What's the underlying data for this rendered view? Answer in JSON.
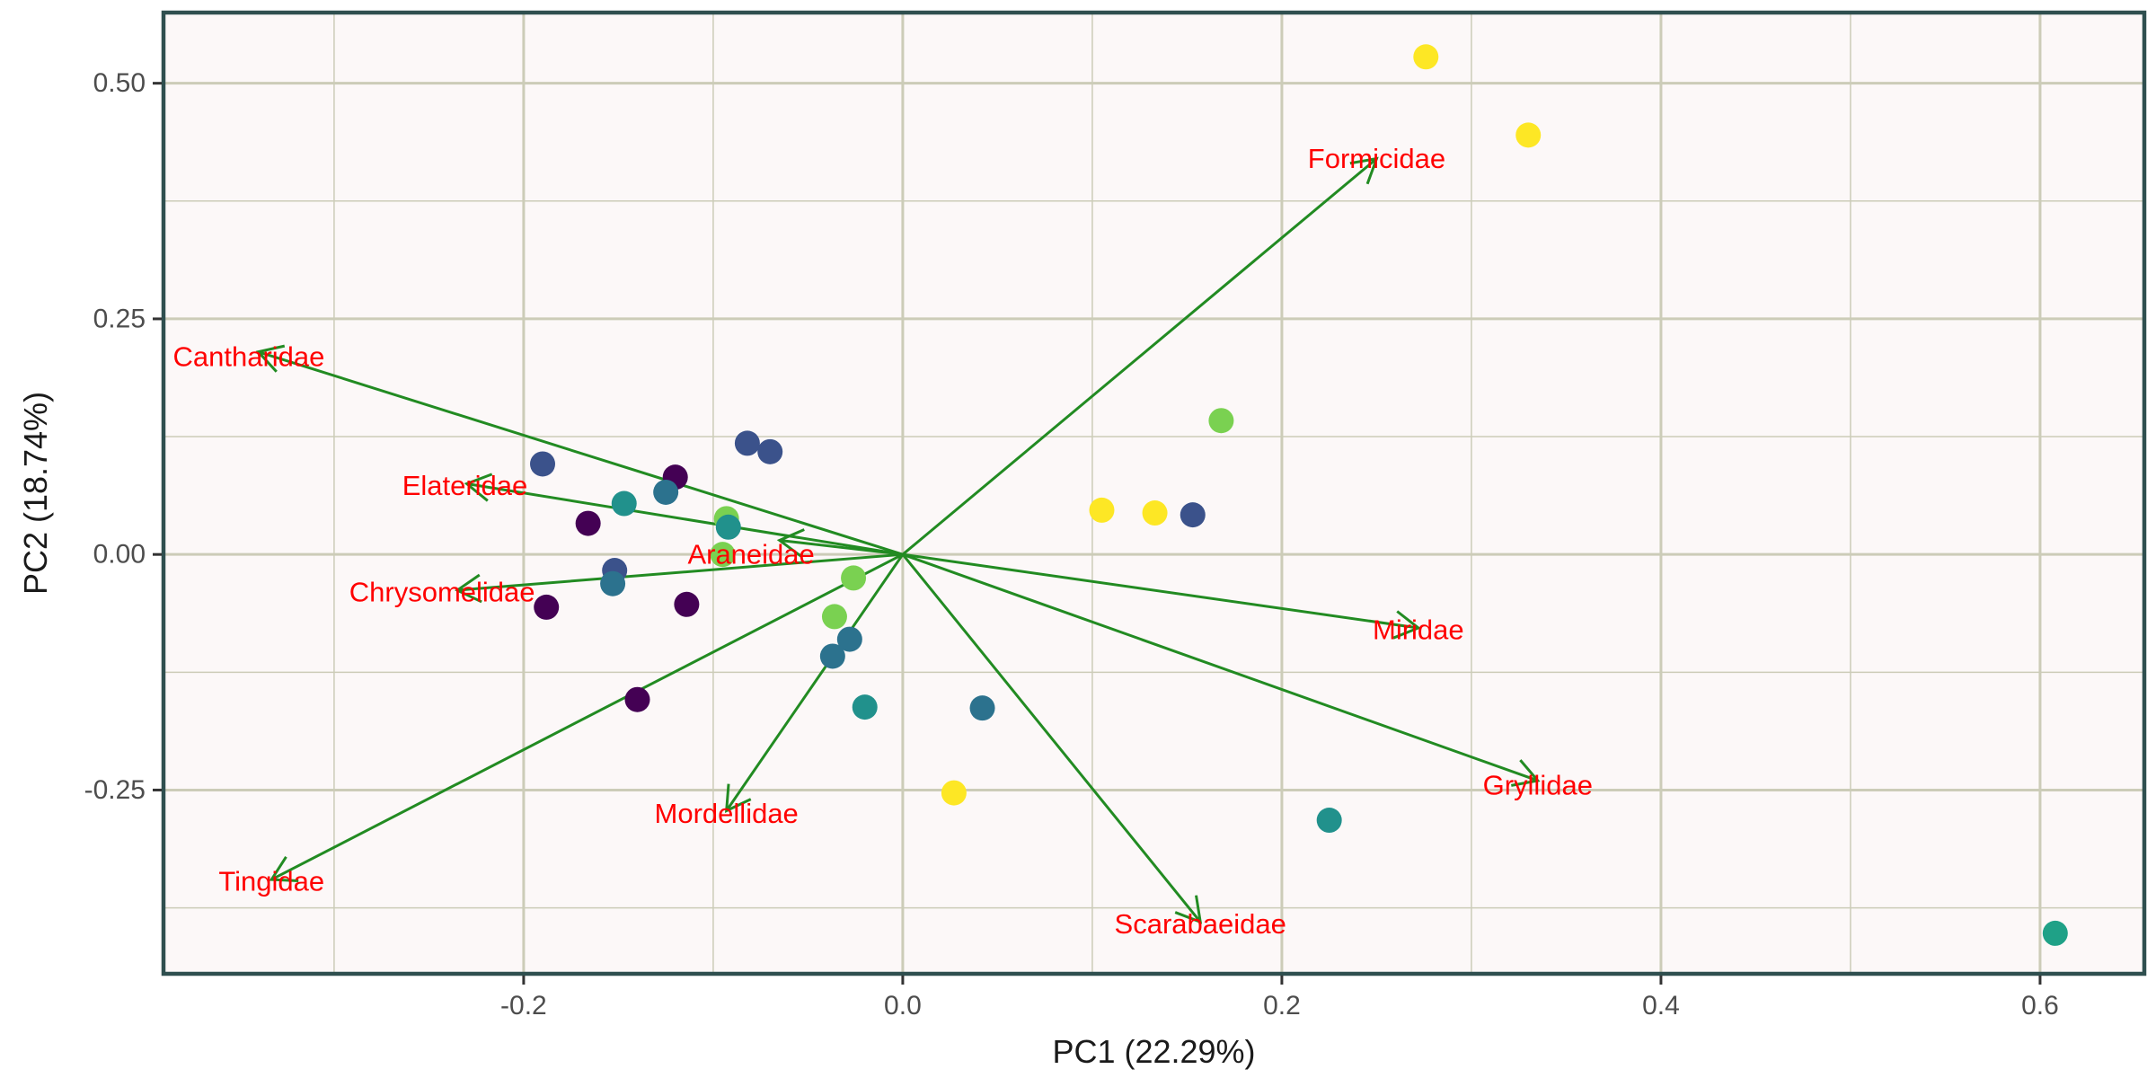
{
  "chart_data": {
    "type": "scatter",
    "subtype": "pca-biplot",
    "xlabel": "PC1 (22.29%)",
    "ylabel": "PC2 (18.74%)",
    "xlim": [
      -0.39,
      0.655
    ],
    "ylim": [
      -0.445,
      0.575
    ],
    "x_ticks": [
      {
        "value": -0.2,
        "label": "-0.2"
      },
      {
        "value": 0.0,
        "label": "0.0"
      },
      {
        "value": 0.2,
        "label": "0.2"
      },
      {
        "value": 0.4,
        "label": "0.4"
      },
      {
        "value": 0.6,
        "label": "0.6"
      }
    ],
    "y_ticks": [
      {
        "value": 0.5,
        "label": "0.50"
      },
      {
        "value": 0.25,
        "label": "0.25"
      },
      {
        "value": 0.0,
        "label": "0.00"
      },
      {
        "value": -0.25,
        "label": "-0.25"
      }
    ],
    "x_minor_grid": [
      -0.3,
      -0.1,
      0.1,
      0.3,
      0.5
    ],
    "y_minor_grid": [
      0.375,
      0.125,
      -0.125,
      -0.375
    ],
    "grid": true,
    "legend": "none",
    "colors": {
      "panel_background": "#fcf8f8",
      "panel_border": "#2f4f4f",
      "grid_line": "#ccccb8",
      "arrow": "#228b22",
      "loading_label": "#ff0000"
    },
    "points": [
      {
        "x": 0.276,
        "y": 0.528,
        "color": "#fde725"
      },
      {
        "x": 0.33,
        "y": 0.445,
        "color": "#fde725"
      },
      {
        "x": 0.168,
        "y": 0.142,
        "color": "#7ad151"
      },
      {
        "x": 0.105,
        "y": 0.047,
        "color": "#fde725"
      },
      {
        "x": 0.133,
        "y": 0.044,
        "color": "#fde725"
      },
      {
        "x": 0.153,
        "y": 0.042,
        "color": "#3b528b"
      },
      {
        "x": -0.19,
        "y": 0.096,
        "color": "#3b528b"
      },
      {
        "x": -0.082,
        "y": 0.118,
        "color": "#3b528b"
      },
      {
        "x": -0.07,
        "y": 0.109,
        "color": "#3b528b"
      },
      {
        "x": -0.12,
        "y": 0.082,
        "color": "#440154"
      },
      {
        "x": -0.125,
        "y": 0.066,
        "color": "#2c728e"
      },
      {
        "x": -0.147,
        "y": 0.054,
        "color": "#21918c"
      },
      {
        "x": -0.166,
        "y": 0.033,
        "color": "#440154"
      },
      {
        "x": -0.093,
        "y": 0.038,
        "color": "#7ad151"
      },
      {
        "x": -0.092,
        "y": 0.029,
        "color": "#21918c"
      },
      {
        "x": -0.152,
        "y": -0.017,
        "color": "#3b528b"
      },
      {
        "x": -0.153,
        "y": -0.031,
        "color": "#2c728e"
      },
      {
        "x": -0.188,
        "y": -0.056,
        "color": "#440154"
      },
      {
        "x": -0.114,
        "y": -0.053,
        "color": "#440154"
      },
      {
        "x": -0.095,
        "y": 0.0,
        "color": "#7ad151"
      },
      {
        "x": -0.026,
        "y": -0.025,
        "color": "#7ad151"
      },
      {
        "x": -0.036,
        "y": -0.066,
        "color": "#7ad151"
      },
      {
        "x": -0.028,
        "y": -0.09,
        "color": "#2c728e"
      },
      {
        "x": -0.037,
        "y": -0.108,
        "color": "#2c728e"
      },
      {
        "x": -0.14,
        "y": -0.154,
        "color": "#440154"
      },
      {
        "x": -0.02,
        "y": -0.162,
        "color": "#21918c"
      },
      {
        "x": 0.042,
        "y": -0.163,
        "color": "#2c728e"
      },
      {
        "x": 0.027,
        "y": -0.253,
        "color": "#fde725"
      },
      {
        "x": 0.225,
        "y": -0.282,
        "color": "#21918c"
      },
      {
        "x": 0.608,
        "y": -0.402,
        "color": "#1fa187"
      }
    ],
    "loadings": [
      {
        "name": "Formicidae",
        "x": 0.25,
        "y": 0.42,
        "label_x": 0.25,
        "label_y": 0.42
      },
      {
        "name": "Cantharidae",
        "x": -0.34,
        "y": 0.215,
        "label_x": -0.345,
        "label_y": 0.21
      },
      {
        "name": "Elateridae",
        "x": -0.23,
        "y": 0.075,
        "label_x": -0.231,
        "label_y": 0.073
      },
      {
        "name": "Araneidae",
        "x": -0.065,
        "y": 0.015,
        "label_x": -0.08,
        "label_y": 0.0
      },
      {
        "name": "Chrysomelidae",
        "x": -0.235,
        "y": -0.038,
        "label_x": -0.243,
        "label_y": -0.04
      },
      {
        "name": "Miridae",
        "x": 0.272,
        "y": -0.078,
        "label_x": 0.272,
        "label_y": -0.08
      },
      {
        "name": "Gryllidae",
        "x": 0.335,
        "y": -0.24,
        "label_x": 0.335,
        "label_y": -0.245
      },
      {
        "name": "Mordellidae",
        "x": -0.093,
        "y": -0.272,
        "label_x": -0.093,
        "label_y": -0.275
      },
      {
        "name": "Tingidae",
        "x": -0.333,
        "y": -0.345,
        "label_x": -0.333,
        "label_y": -0.347
      },
      {
        "name": "Scarabaeidae",
        "x": 0.157,
        "y": -0.39,
        "label_x": 0.157,
        "label_y": -0.392
      }
    ]
  }
}
